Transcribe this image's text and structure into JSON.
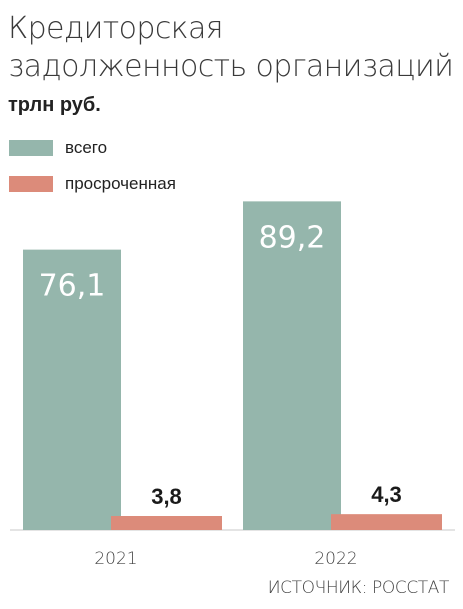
{
  "title": "Кредиторская задолженность организаций",
  "unit": "трлн руб.",
  "legend": [
    {
      "label": "всего",
      "color": "#95b6ac"
    },
    {
      "label": "просроченная",
      "color": "#dc8b7a"
    }
  ],
  "source": "ИСТОЧНИК: РОССТАТ",
  "chart_data": {
    "type": "bar",
    "categories": [
      "2021",
      "2022"
    ],
    "series": [
      {
        "name": "всего",
        "values": [
          76.1,
          89.2
        ],
        "labels": [
          "76,1",
          "89,2"
        ]
      },
      {
        "name": "просроченная",
        "values": [
          3.8,
          4.3
        ],
        "labels": [
          "3,8",
          "4,3"
        ]
      }
    ],
    "ylim": [
      0,
      95
    ],
    "grid": false,
    "legend_position": "top-left"
  }
}
